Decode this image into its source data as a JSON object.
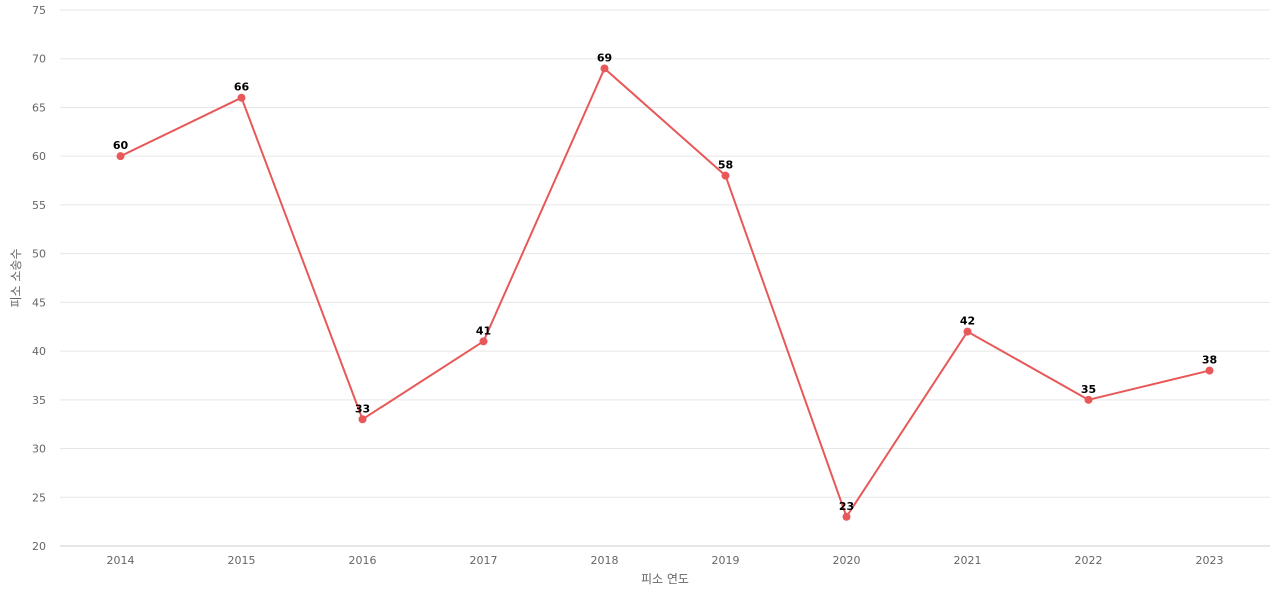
{
  "chart_data": {
    "type": "line",
    "title": "",
    "xlabel": "피소 연도",
    "ylabel": "피소 소송수",
    "categories": [
      "2014",
      "2015",
      "2016",
      "2017",
      "2018",
      "2019",
      "2020",
      "2021",
      "2022",
      "2023"
    ],
    "series": [
      {
        "values": [
          60,
          66,
          33,
          41,
          69,
          58,
          23,
          42,
          35,
          38
        ],
        "color": "#e85858"
      }
    ],
    "ylim": [
      20,
      75
    ],
    "yticks": [
      20,
      25,
      30,
      35,
      40,
      45,
      50,
      55,
      60,
      65,
      70,
      75
    ],
    "grid": true,
    "legend": "none",
    "data_labels": true
  }
}
